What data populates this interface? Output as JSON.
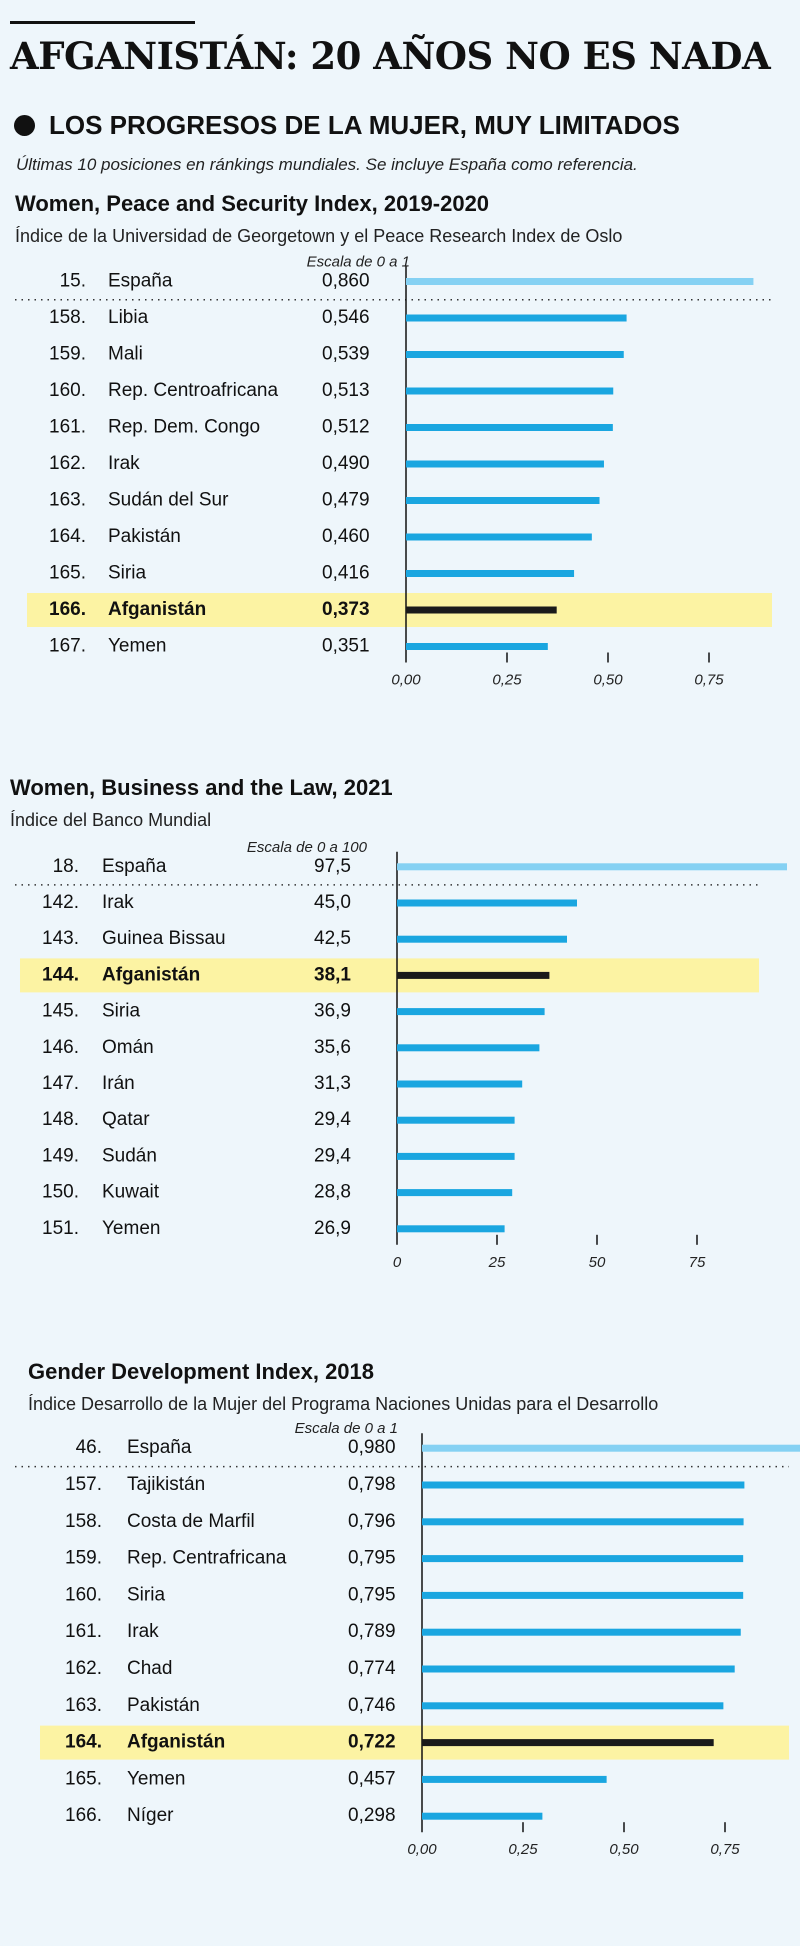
{
  "header": {
    "main_title": "AFGANISTÁN: 20 AÑOS NO ES NADA",
    "section_title": "LOS PROGRESOS DE LA MUJER, MUY LIMITADOS",
    "note": "Últimas 10 posiciones en ránkings mundiales. Se incluye España como referencia."
  },
  "colors": {
    "bar": "#1aa6e0",
    "reference_bar": "#85d1f3",
    "highlight_bar": "#1a1a1a",
    "highlight_band": "#fcf3a3",
    "background": "#eef6fb"
  },
  "chart_data": [
    {
      "type": "bar",
      "orientation": "horizontal",
      "title": "Women, Peace and Security Index, 2019-2020",
      "subtitle": "Índice de la Universidad de Georgetown y el Peace Research Index de Oslo",
      "scale_label": "Escala de 0 a 1",
      "xlim": [
        0,
        1
      ],
      "ticks": [
        0,
        0.25,
        0.5,
        0.75
      ],
      "tick_labels": [
        "0,00",
        "0,25",
        "0,50",
        "0,75"
      ],
      "rows": [
        {
          "rank": "15.",
          "country": "España",
          "value": 0.86,
          "label": "0,860",
          "kind": "reference"
        },
        {
          "rank": "158.",
          "country": "Libia",
          "value": 0.546,
          "label": "0,546"
        },
        {
          "rank": "159.",
          "country": "Mali",
          "value": 0.539,
          "label": "0,539"
        },
        {
          "rank": "160.",
          "country": "Rep. Centroafricana",
          "value": 0.513,
          "label": "0,513"
        },
        {
          "rank": "161.",
          "country": "Rep. Dem. Congo",
          "value": 0.512,
          "label": "0,512"
        },
        {
          "rank": "162.",
          "country": "Irak",
          "value": 0.49,
          "label": "0,490"
        },
        {
          "rank": "163.",
          "country": "Sudán del Sur",
          "value": 0.479,
          "label": "0,479"
        },
        {
          "rank": "164.",
          "country": "Pakistán",
          "value": 0.46,
          "label": "0,460"
        },
        {
          "rank": "165.",
          "country": "Siria",
          "value": 0.416,
          "label": "0,416"
        },
        {
          "rank": "166.",
          "country": "Afganistán",
          "value": 0.373,
          "label": "0,373",
          "kind": "highlight"
        },
        {
          "rank": "167.",
          "country": "Yemen",
          "value": 0.351,
          "label": "0,351"
        }
      ]
    },
    {
      "type": "bar",
      "orientation": "horizontal",
      "title": "Women, Business and the Law, 2021",
      "subtitle": "Índice del Banco Mundial",
      "scale_label": "Escala de 0 a 100",
      "xlim": [
        0,
        100
      ],
      "ticks": [
        0,
        25,
        50,
        75
      ],
      "tick_labels": [
        "0",
        "25",
        "50",
        "75"
      ],
      "rows": [
        {
          "rank": "18.",
          "country": "España",
          "value": 97.5,
          "label": "97,5",
          "kind": "reference"
        },
        {
          "rank": "142.",
          "country": "Irak",
          "value": 45.0,
          "label": "45,0"
        },
        {
          "rank": "143.",
          "country": "Guinea Bissau",
          "value": 42.5,
          "label": "42,5"
        },
        {
          "rank": "144.",
          "country": "Afganistán",
          "value": 38.1,
          "label": "38,1",
          "kind": "highlight"
        },
        {
          "rank": "145.",
          "country": "Siria",
          "value": 36.9,
          "label": "36,9"
        },
        {
          "rank": "146.",
          "country": "Omán",
          "value": 35.6,
          "label": "35,6"
        },
        {
          "rank": "147.",
          "country": "Irán",
          "value": 31.3,
          "label": "31,3"
        },
        {
          "rank": "148.",
          "country": "Qatar",
          "value": 29.4,
          "label": "29,4"
        },
        {
          "rank": "149.",
          "country": "Sudán",
          "value": 29.4,
          "label": "29,4"
        },
        {
          "rank": "150.",
          "country": "Kuwait",
          "value": 28.8,
          "label": "28,8"
        },
        {
          "rank": "151.",
          "country": "Yemen",
          "value": 26.9,
          "label": "26,9"
        }
      ]
    },
    {
      "type": "bar",
      "orientation": "horizontal",
      "title": "Gender Development Index, 2018",
      "subtitle": "Índice Desarrollo de la Mujer del Programa Naciones Unidas para el Desarrollo",
      "scale_label": "Escala de 0 a 1",
      "xlim": [
        0,
        1
      ],
      "ticks": [
        0,
        0.25,
        0.5,
        0.75
      ],
      "tick_labels": [
        "0,00",
        "0,25",
        "0,50",
        "0,75"
      ],
      "rows": [
        {
          "rank": "46.",
          "country": "España",
          "value": 0.98,
          "label": "0,980",
          "kind": "reference"
        },
        {
          "rank": "157.",
          "country": "Tajikistán",
          "value": 0.798,
          "label": "0,798"
        },
        {
          "rank": "158.",
          "country": "Costa de Marfil",
          "value": 0.796,
          "label": "0,796"
        },
        {
          "rank": "159.",
          "country": "Rep. Centrafricana",
          "value": 0.795,
          "label": "0,795"
        },
        {
          "rank": "160.",
          "country": "Siria",
          "value": 0.795,
          "label": "0,795"
        },
        {
          "rank": "161.",
          "country": "Irak",
          "value": 0.789,
          "label": "0,789"
        },
        {
          "rank": "162.",
          "country": "Chad",
          "value": 0.774,
          "label": "0,774"
        },
        {
          "rank": "163.",
          "country": "Pakistán",
          "value": 0.746,
          "label": "0,746"
        },
        {
          "rank": "164.",
          "country": "Afganistán",
          "value": 0.722,
          "label": "0,722",
          "kind": "highlight"
        },
        {
          "rank": "165.",
          "country": "Yemen",
          "value": 0.457,
          "label": "0,457"
        },
        {
          "rank": "166.",
          "country": "Níger",
          "value": 0.298,
          "label": "0,298"
        }
      ]
    }
  ]
}
